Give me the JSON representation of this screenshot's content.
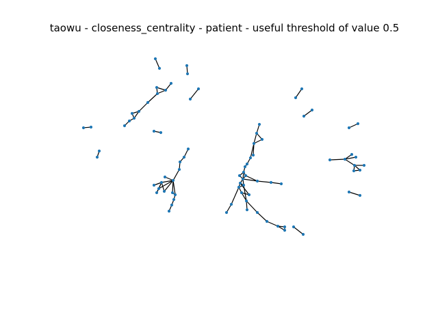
{
  "title": "taowu - closeness_centrality - patient - useful threshold of value 0.5",
  "colors": {
    "background": "#ffffff",
    "node": "#1f77b4",
    "edge": "#000000",
    "title": "#000000"
  }
}
